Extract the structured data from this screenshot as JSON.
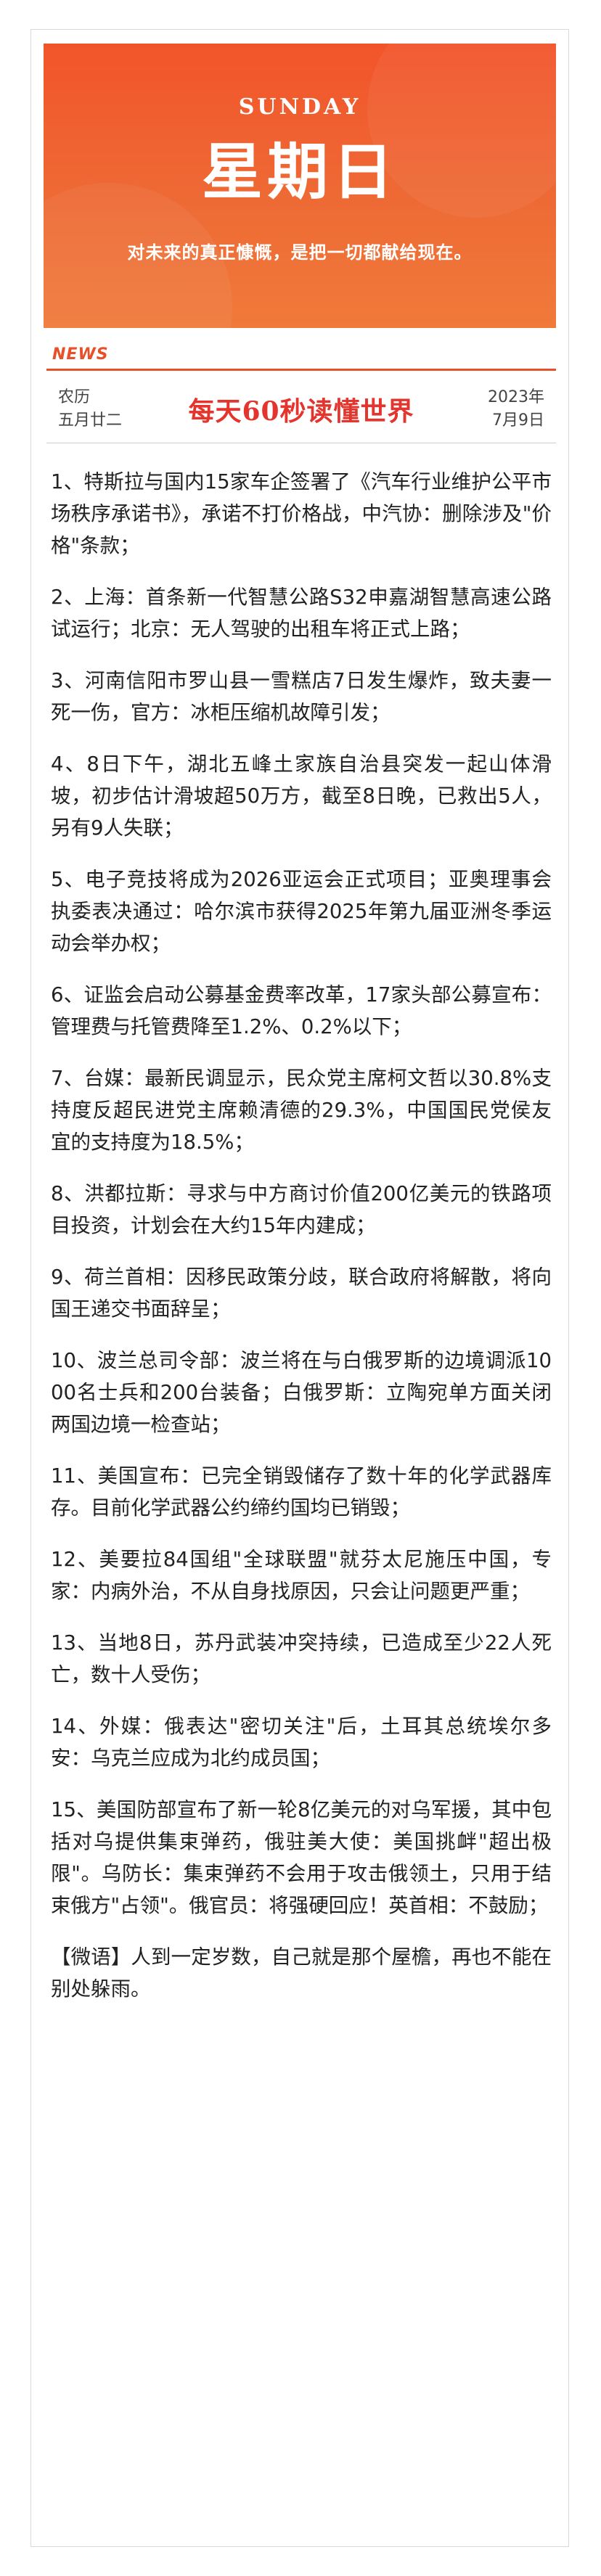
{
  "banner": {
    "english_day": "SUNDAY",
    "chinese_day": "星期日",
    "motto": "对未来的真正慷慨，是把一切都献给现在。",
    "color_start": "#f2542a",
    "color_end": "#f07a3a"
  },
  "section_label": "NEWS",
  "date_bar": {
    "lunar_line1": "农历",
    "lunar_line2": "五月廿二",
    "headline": "每天60秒读懂世界",
    "year": "2023年",
    "month_day": "7月9日",
    "accent_color": "#e3342d"
  },
  "news_items": [
    "1、特斯拉与国内15家车企签署了《汽车行业维护公平市场秩序承诺书》，承诺不打价格战，中汽协：删除涉及\"价格\"条款；",
    "2、上海：首条新一代智慧公路S32申嘉湖智慧高速公路试运行；北京：无人驾驶的出租车将正式上路；",
    "3、河南信阳市罗山县一雪糕店7日发生爆炸，致夫妻一死一伤，官方：冰柜压缩机故障引发；",
    "4、8日下午，湖北五峰土家族自治县突发一起山体滑坡，初步估计滑坡超50万方，截至8日晚，已救出5人，另有9人失联；",
    "5、电子竞技将成为2026亚运会正式项目；亚奥理事会执委表决通过：哈尔滨市获得2025年第九届亚洲冬季运动会举办权；",
    "6、证监会启动公募基金费率改革，17家头部公募宣布：管理费与托管费降至1.2%、0.2%以下；",
    "7、台媒：最新民调显示，民众党主席柯文哲以30.8%支持度反超民进党主席赖清德的29.3%，中国国民党侯友宜的支持度为18.5%；",
    "8、洪都拉斯：寻求与中方商讨价值200亿美元的铁路项目投资，计划会在大约15年内建成；",
    "9、荷兰首相：因移民政策分歧，联合政府将解散，将向国王递交书面辞呈；",
    "10、波兰总司令部：波兰将在与白俄罗斯的边境调派1000名士兵和200台装备；白俄罗斯：立陶宛单方面关闭两国边境一检查站；",
    "11、美国宣布：已完全销毁储存了数十年的化学武器库存。目前化学武器公约缔约国均已销毁；",
    "12、美要拉84国组\"全球联盟\"就芬太尼施压中国，专家：内病外治，不从自身找原因，只会让问题更严重；",
    "13、当地8日，苏丹武装冲突持续，已造成至少22人死亡，数十人受伤；",
    "14、外媒：俄表达\"密切关注\"后，土耳其总统埃尔多安：乌克兰应成为北约成员国；",
    "15、美国防部宣布了新一轮8亿美元的对乌军援，其中包括对乌提供集束弹药，俄驻美大使：美国挑衅\"超出极限\"。乌防长：集束弹药不会用于攻击俄领土，只用于结束俄方\"占领\"。俄官员：将强硬回应！英首相：不鼓励；"
  ],
  "quote": "【微语】人到一定岁数，自己就是那个屋檐，再也不能在别处躲雨。"
}
